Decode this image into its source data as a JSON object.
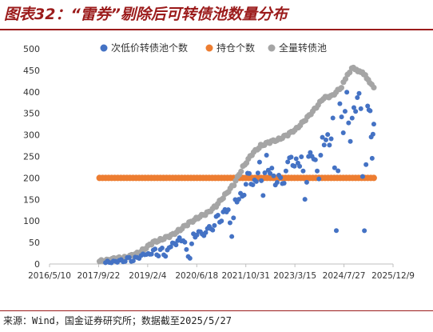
{
  "page": {
    "title": "图表32：“雷券”剔除后可转债池数量分布",
    "source": "来源：Wind，国金证券研究所；数据截至2025/5/27"
  },
  "chart_data": {
    "type": "scatter",
    "x_ticks": [
      "2016/5/10",
      "2017/9/22",
      "2019/2/4",
      "2020/6/18",
      "2021/10/31",
      "2023/3/15",
      "2024/7/27",
      "2025/12/9"
    ],
    "ylim": [
      0,
      500
    ],
    "y_ticks": [
      0,
      50,
      100,
      150,
      200,
      250,
      300,
      350,
      400,
      450,
      500
    ],
    "legend_position": "top",
    "colors": {
      "low_price": "#4472c4",
      "holding": "#ed7d31",
      "total": "#a5a5a5"
    },
    "series": [
      {
        "name": "次低价转债池个数",
        "style": "scatter",
        "points": [
          [
            "2017-12-01",
            3
          ],
          [
            "2018-01-10",
            5
          ],
          [
            "2018-02-20",
            4
          ],
          [
            "2018-04-01",
            8
          ],
          [
            "2018-05-10",
            6
          ],
          [
            "2018-06-20",
            10
          ],
          [
            "2018-08-01",
            12
          ],
          [
            "2018-09-10",
            9
          ],
          [
            "2018-10-20",
            15
          ],
          [
            "2018-11-30",
            18
          ],
          [
            "2019-01-05",
            25
          ],
          [
            "2019-02-10",
            20
          ],
          [
            "2019-03-15",
            28
          ],
          [
            "2019-04-20",
            30
          ],
          [
            "2019-05-25",
            22
          ],
          [
            "2019-07-01",
            35
          ],
          [
            "2019-08-05",
            18
          ],
          [
            "2019-09-10",
            40
          ],
          [
            "2019-10-15",
            45
          ],
          [
            "2019-11-20",
            50
          ],
          [
            "2019-12-25",
            55
          ],
          [
            "2020-02-01",
            60
          ],
          [
            "2020-03-05",
            30
          ],
          [
            "2020-04-10",
            15
          ],
          [
            "2020-05-15",
            70
          ],
          [
            "2020-06-20",
            65
          ],
          [
            "2020-07-25",
            80
          ],
          [
            "2020-08-30",
            60
          ],
          [
            "2020-10-05",
            90
          ],
          [
            "2020-11-10",
            75
          ],
          [
            "2020-12-15",
            95
          ],
          [
            "2021-01-20",
            110
          ],
          [
            "2021-02-25",
            100
          ],
          [
            "2021-04-01",
            130
          ],
          [
            "2021-05-05",
            120
          ],
          [
            "2021-06-10",
            70
          ],
          [
            "2021-07-15",
            140
          ],
          [
            "2021-08-20",
            160
          ],
          [
            "2021-09-25",
            150
          ],
          [
            "2021-11-01",
            190
          ],
          [
            "2021-12-05",
            210
          ],
          [
            "2022-01-10",
            180
          ],
          [
            "2022-02-15",
            200
          ],
          [
            "2022-03-20",
            225
          ],
          [
            "2022-04-25",
            170
          ],
          [
            "2022-05-30",
            240
          ],
          [
            "2022-07-05",
            220
          ],
          [
            "2022-08-10",
            200
          ],
          [
            "2022-09-15",
            190
          ],
          [
            "2022-10-20",
            205
          ],
          [
            "2022-11-25",
            180
          ],
          [
            "2023-01-01",
            250
          ],
          [
            "2023-02-05",
            235
          ],
          [
            "2023-03-10",
            240
          ],
          [
            "2023-04-15",
            225
          ],
          [
            "2023-05-20",
            255
          ],
          [
            "2023-06-25",
            150
          ],
          [
            "2023-08-01",
            245
          ],
          [
            "2023-09-05",
            260
          ],
          [
            "2023-10-10",
            230
          ],
          [
            "2023-11-15",
            210
          ],
          [
            "2023-12-20",
            280
          ],
          [
            "2024-01-25",
            300
          ],
          [
            "2024-03-01",
            270
          ],
          [
            "2024-04-05",
            340
          ],
          [
            "2024-05-10",
            80
          ],
          [
            "2024-06-15",
            360
          ],
          [
            "2024-07-20",
            320
          ],
          [
            "2024-08-25",
            380
          ],
          [
            "2024-09-30",
            300
          ],
          [
            "2024-11-05",
            350
          ],
          [
            "2024-12-10",
            395
          ],
          [
            "2025-01-15",
            360
          ],
          [
            "2025-02-20",
            75
          ],
          [
            "2025-03-25",
            380
          ],
          [
            "2025-04-20",
            340
          ],
          [
            "2025-05-10",
            260
          ],
          [
            "2025-05-27",
            325
          ]
        ]
      },
      {
        "name": "持仓个数",
        "style": "flat",
        "x_range": [
          "2017-10-01",
          "2025-05-27"
        ],
        "y": 200
      },
      {
        "name": "全量转债池",
        "style": "scatter",
        "points": [
          [
            "2017-10-01",
            6
          ],
          [
            "2018-01-01",
            10
          ],
          [
            "2018-04-01",
            13
          ],
          [
            "2018-07-01",
            16
          ],
          [
            "2018-10-01",
            22
          ],
          [
            "2019-01-01",
            35
          ],
          [
            "2019-04-01",
            50
          ],
          [
            "2019-07-01",
            58
          ],
          [
            "2019-10-01",
            66
          ],
          [
            "2020-01-01",
            80
          ],
          [
            "2020-04-01",
            95
          ],
          [
            "2020-07-01",
            108
          ],
          [
            "2020-10-01",
            118
          ],
          [
            "2021-01-01",
            135
          ],
          [
            "2021-04-01",
            160
          ],
          [
            "2021-07-01",
            185
          ],
          [
            "2021-10-01",
            225
          ],
          [
            "2022-01-01",
            255
          ],
          [
            "2022-04-01",
            275
          ],
          [
            "2022-07-01",
            283
          ],
          [
            "2022-10-01",
            290
          ],
          [
            "2023-01-01",
            300
          ],
          [
            "2023-04-01",
            315
          ],
          [
            "2023-07-01",
            335
          ],
          [
            "2023-10-01",
            360
          ],
          [
            "2024-01-01",
            385
          ],
          [
            "2024-04-01",
            392
          ],
          [
            "2024-07-01",
            410
          ],
          [
            "2024-09-01",
            440
          ],
          [
            "2024-10-15",
            455
          ],
          [
            "2024-12-01",
            452
          ],
          [
            "2025-01-15",
            445
          ],
          [
            "2025-03-01",
            440
          ],
          [
            "2025-04-15",
            420
          ],
          [
            "2025-05-27",
            410
          ]
        ]
      }
    ]
  }
}
